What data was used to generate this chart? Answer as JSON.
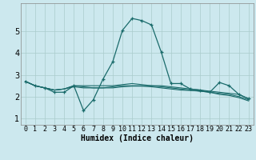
{
  "title": "",
  "xlabel": "Humidex (Indice chaleur)",
  "bg_color": "#cce8ee",
  "grid_color": "#aacccc",
  "line_color": "#1a6b6b",
  "x_ticks": [
    0,
    1,
    2,
    3,
    4,
    5,
    6,
    7,
    8,
    9,
    10,
    11,
    12,
    13,
    14,
    15,
    16,
    17,
    18,
    19,
    20,
    21,
    22,
    23
  ],
  "y_ticks": [
    1,
    2,
    3,
    4,
    5
  ],
  "ylim": [
    0.7,
    6.3
  ],
  "xlim": [
    -0.5,
    23.5
  ],
  "lines": [
    {
      "x": [
        0,
        1,
        2,
        3,
        4,
        5,
        6,
        7,
        8,
        9,
        10,
        11,
        12,
        13,
        14,
        15,
        16,
        17,
        18,
        19,
        20,
        21,
        22,
        23
      ],
      "y": [
        2.7,
        2.5,
        2.4,
        2.2,
        2.2,
        2.5,
        1.35,
        1.85,
        2.8,
        3.6,
        5.05,
        5.6,
        5.5,
        5.3,
        4.05,
        2.6,
        2.6,
        2.35,
        2.3,
        2.2,
        2.65,
        2.5,
        2.1,
        1.9
      ],
      "marker": true
    },
    {
      "x": [
        0,
        1,
        2,
        3,
        4,
        5,
        6,
        7,
        8,
        9,
        10,
        11,
        12,
        13,
        14,
        15,
        16,
        17,
        18,
        19,
        20,
        21,
        22,
        23
      ],
      "y": [
        2.7,
        2.5,
        2.4,
        2.3,
        2.35,
        2.5,
        2.5,
        2.5,
        2.5,
        2.5,
        2.55,
        2.6,
        2.55,
        2.5,
        2.5,
        2.45,
        2.4,
        2.35,
        2.3,
        2.25,
        2.2,
        2.15,
        2.1,
        1.9
      ],
      "marker": false
    },
    {
      "x": [
        0,
        1,
        2,
        3,
        4,
        5,
        6,
        7,
        8,
        9,
        10,
        11,
        12,
        13,
        14,
        15,
        16,
        17,
        18,
        19,
        20,
        21,
        22,
        23
      ],
      "y": [
        2.7,
        2.5,
        2.4,
        2.3,
        2.35,
        2.5,
        2.45,
        2.4,
        2.4,
        2.45,
        2.5,
        2.5,
        2.5,
        2.5,
        2.45,
        2.4,
        2.35,
        2.3,
        2.25,
        2.2,
        2.15,
        2.1,
        2.0,
        1.85
      ],
      "marker": false
    },
    {
      "x": [
        0,
        1,
        2,
        3,
        4,
        5,
        6,
        7,
        8,
        9,
        10,
        11,
        12,
        13,
        14,
        15,
        16,
        17,
        18,
        19,
        20,
        21,
        22,
        23
      ],
      "y": [
        2.7,
        2.5,
        2.4,
        2.3,
        2.35,
        2.45,
        2.4,
        2.4,
        2.4,
        2.4,
        2.45,
        2.48,
        2.48,
        2.45,
        2.4,
        2.35,
        2.3,
        2.28,
        2.25,
        2.2,
        2.1,
        2.05,
        1.95,
        1.8
      ],
      "marker": false
    }
  ],
  "tick_fontsize": 6,
  "xlabel_fontsize": 7
}
